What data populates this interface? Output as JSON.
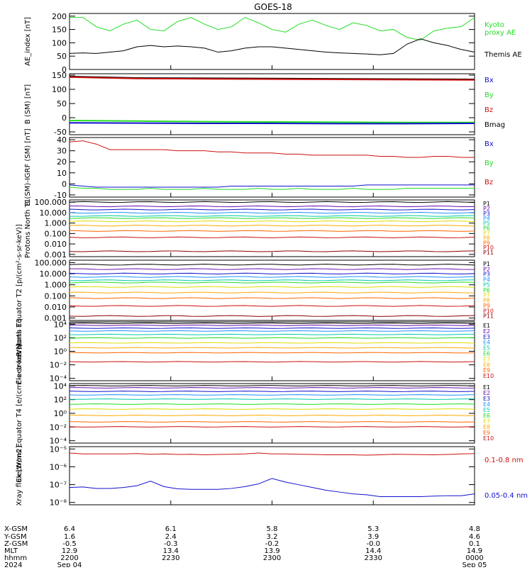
{
  "title": "GOES-18",
  "colors": {
    "black": "#000000",
    "green": "#22dd22",
    "blue": "#1111cc",
    "red": "#cc1111",
    "maroon": "#8b0000",
    "teal": "#228866"
  },
  "ephemeris": {
    "labels": [
      "X-GSM",
      "Y-GSM",
      "Z-GSM",
      "MLT",
      "hhmm",
      "2024"
    ],
    "columns": [
      [
        "6.4",
        "1.6",
        "-0.5",
        "12.9",
        "2200",
        "Sep 04"
      ],
      [
        "6.1",
        "2.4",
        "-0.3",
        "13.4",
        "2230",
        ""
      ],
      [
        "5.8",
        "3.2",
        "-0.2",
        "13.9",
        "2300",
        ""
      ],
      [
        "5.3",
        "3.9",
        "-0.0",
        "14.4",
        "2330",
        ""
      ],
      [
        "4.8",
        "4.6",
        "0.1",
        "14.9",
        "0000",
        "Sep 05"
      ]
    ]
  },
  "chart_data": [
    {
      "type": "line",
      "ylabel": "AE_index [nT]",
      "yticks": [
        "0",
        "50",
        "100",
        "150",
        "200"
      ],
      "ylim": [
        0,
        210
      ],
      "x": [
        0,
        2,
        4,
        6,
        8,
        10,
        12,
        14,
        16,
        18,
        20,
        22,
        24,
        26,
        28,
        30,
        32,
        34,
        36,
        38,
        40,
        42,
        44,
        46,
        48,
        50,
        52,
        54,
        56,
        58,
        60
      ],
      "series": [
        {
          "name": "Kyoto proxy AE",
          "color": "#22dd22",
          "values": [
            195,
            195,
            160,
            145,
            170,
            185,
            150,
            145,
            180,
            195,
            170,
            150,
            160,
            195,
            175,
            150,
            140,
            170,
            185,
            165,
            150,
            175,
            165,
            145,
            150,
            120,
            110,
            145,
            155,
            160,
            195
          ]
        },
        {
          "name": "Themis AE",
          "color": "#000000",
          "values": [
            60,
            62,
            60,
            65,
            70,
            85,
            90,
            85,
            88,
            85,
            80,
            65,
            70,
            80,
            85,
            85,
            80,
            75,
            70,
            65,
            62,
            60,
            58,
            55,
            60,
            95,
            115,
            100,
            90,
            75,
            65
          ]
        }
      ],
      "legend": [
        {
          "text": "Kyoto",
          "color": "#22dd22"
        },
        {
          "text": "proxy AE",
          "color": "#22dd22"
        },
        {
          "text": "Themis AE",
          "color": "#000000"
        }
      ]
    },
    {
      "type": "line",
      "ylabel": "B (SM) [nT]",
      "yticks": [
        "-50",
        "0",
        "50",
        "100",
        "150"
      ],
      "ylim": [
        -60,
        155
      ],
      "x": [
        0,
        10,
        20,
        30,
        40,
        50,
        60
      ],
      "series": [
        {
          "name": "Bmag",
          "color": "#000000",
          "values": [
            145,
            140,
            139,
            138,
            137,
            136,
            135
          ]
        },
        {
          "name": "Bz",
          "color": "#cc1111",
          "values": [
            143,
            138,
            137,
            136,
            135,
            134,
            133
          ]
        },
        {
          "name": "By",
          "color": "#22dd22",
          "values": [
            -10,
            -12,
            -14,
            -15,
            -16,
            -17,
            -17
          ]
        },
        {
          "name": "Bx",
          "color": "#1111cc",
          "values": [
            -18,
            -19,
            -20,
            -20,
            -21,
            -21,
            -20
          ]
        }
      ],
      "legend": [
        {
          "text": "Bx",
          "color": "#1111cc"
        },
        {
          "text": "By",
          "color": "#22dd22"
        },
        {
          "text": "Bz",
          "color": "#cc1111"
        },
        {
          "text": "Bmag",
          "color": "#000000"
        }
      ]
    },
    {
      "type": "line",
      "ylabel": "B (SM)-IGRF (SM) [nT]",
      "yticks": [
        "-10",
        "0",
        "10",
        "20",
        "30",
        "40"
      ],
      "ylim": [
        -12,
        42
      ],
      "x": [
        0,
        2,
        4,
        6,
        8,
        10,
        12,
        14,
        16,
        18,
        20,
        22,
        24,
        26,
        28,
        30,
        32,
        34,
        36,
        38,
        40,
        42,
        44,
        46,
        48,
        50,
        52,
        54,
        56,
        58,
        60
      ],
      "series": [
        {
          "name": "Bz",
          "color": "#cc1111",
          "values": [
            38,
            39,
            36,
            31,
            31,
            31,
            31,
            31,
            30,
            30,
            30,
            29,
            29,
            28,
            28,
            28,
            27,
            27,
            26,
            26,
            26,
            26,
            26,
            25,
            25,
            24,
            24,
            25,
            25,
            24,
            24
          ]
        },
        {
          "name": "Bx",
          "color": "#1111cc",
          "values": [
            -1,
            -2,
            -3,
            -3,
            -3,
            -3,
            -3,
            -3,
            -3,
            -3,
            -3,
            -3,
            -2,
            -2,
            -2,
            -2,
            -2,
            -2,
            -2,
            -2,
            -2,
            -2,
            -1,
            -1,
            -1,
            -1,
            -1,
            -1,
            -1,
            -1,
            -1
          ]
        },
        {
          "name": "By",
          "color": "#22dd22",
          "values": [
            -3,
            -4,
            -4,
            -5,
            -5,
            -5,
            -4,
            -5,
            -5,
            -5,
            -4,
            -5,
            -5,
            -5,
            -4,
            -5,
            -5,
            -4,
            -5,
            -5,
            -5,
            -4,
            -5,
            -5,
            -5,
            -4,
            -4,
            -4,
            -4,
            -4,
            -4
          ]
        }
      ],
      "legend": [
        {
          "text": "Bx",
          "color": "#1111cc"
        },
        {
          "text": "By",
          "color": "#22dd22"
        },
        {
          "text": "Bz",
          "color": "#cc1111"
        }
      ]
    },
    {
      "type": "line",
      "ylabel": "Protons North T1",
      "yticks": [
        "0.001",
        "0.010",
        "0.100",
        "1.000",
        "10.000",
        "100.000"
      ],
      "ylim": [
        -3,
        2.3
      ],
      "log": true,
      "channels": [
        "P1",
        "P2",
        "P3",
        "P4",
        "P5",
        "P6",
        "P7",
        "P8",
        "P9",
        "P10",
        "P11"
      ],
      "channel_colors": [
        "#000000",
        "#6a0dad",
        "#1111cc",
        "#1e90ff",
        "#00ccaa",
        "#22dd22",
        "#dddd00",
        "#ffaa00",
        "#ff6600",
        "#cc1111",
        "#8b0000"
      ],
      "levels": [
        2.1,
        1.7,
        1.4,
        1.1,
        0.8,
        0.6,
        0.3,
        -0.1,
        -0.6,
        -1.2,
        -2.5
      ]
    },
    {
      "type": "line",
      "ylabel": "Protons Equator T2 [p/(cm²-s-sr-keV)]",
      "yticks": [
        "0.001",
        "0.010",
        "0.100",
        "1.000",
        "10.000",
        "100.000"
      ],
      "ylim": [
        -3.2,
        2.2
      ],
      "log": true,
      "channels": [
        "P1",
        "P2",
        "P3",
        "P4",
        "P5",
        "P6",
        "P7",
        "P8",
        "P9",
        "P10",
        "P11"
      ],
      "channel_colors": [
        "#000000",
        "#6a0dad",
        "#1111cc",
        "#1e90ff",
        "#00ccaa",
        "#22dd22",
        "#dddd00",
        "#ffaa00",
        "#ff6600",
        "#cc1111",
        "#8b0000"
      ],
      "levels": [
        1.8,
        1.4,
        1.0,
        0.7,
        0.4,
        0.2,
        -0.2,
        -0.7,
        -1.2,
        -1.9,
        -2.8
      ]
    },
    {
      "type": "line",
      "ylabel": "Electrons North T3",
      "yticks": [
        "10⁻⁴",
        "10⁻²",
        "10⁰",
        "10²",
        "10⁴"
      ],
      "ylim": [
        -4.2,
        4.2
      ],
      "log": true,
      "channels": [
        "E1",
        "E2",
        "E3",
        "E4",
        "E5",
        "E6",
        "E7",
        "E8",
        "E9",
        "E10"
      ],
      "channel_colors": [
        "#000000",
        "#6a0dad",
        "#1111cc",
        "#1e90ff",
        "#00ccaa",
        "#22dd22",
        "#dddd00",
        "#ffaa00",
        "#ff6600",
        "#cc1111"
      ],
      "levels": [
        4.0,
        3.7,
        3.3,
        2.9,
        2.4,
        1.9,
        1.2,
        0.5,
        -0.2,
        -1.5
      ]
    },
    {
      "type": "line",
      "ylabel": "Electrons Equator T4 [e/(cm²-s-sr-keV)]",
      "yticks": [
        "10⁻⁴",
        "10⁻²",
        "10⁰",
        "10²",
        "10⁴"
      ],
      "ylim": [
        -4.2,
        4.2
      ],
      "log": true,
      "channels": [
        "E1",
        "E2",
        "E3",
        "E4",
        "E5",
        "E6",
        "E7",
        "E8",
        "E9",
        "E10"
      ],
      "channel_colors": [
        "#000000",
        "#6a0dad",
        "#1111cc",
        "#1e90ff",
        "#00ccaa",
        "#22dd22",
        "#dddd00",
        "#ffaa00",
        "#ff6600",
        "#cc1111"
      ],
      "levels": [
        3.9,
        3.6,
        3.1,
        2.6,
        2.0,
        1.3,
        0.6,
        -0.3,
        -1.2,
        -1.9
      ]
    },
    {
      "type": "line",
      "ylabel": "Xray flux [W/m2]",
      "yticks": [
        "10⁻⁸",
        "10⁻⁷",
        "10⁻⁶",
        "10⁻⁵"
      ],
      "ylim": [
        -8.1,
        -4.9
      ],
      "log": true,
      "x": [
        0,
        2,
        4,
        6,
        8,
        10,
        12,
        14,
        16,
        18,
        20,
        22,
        24,
        26,
        28,
        30,
        32,
        34,
        36,
        38,
        40,
        42,
        44,
        46,
        48,
        50,
        52,
        54,
        56,
        58,
        60
      ],
      "series": [
        {
          "name": "0.1-0.8 nm",
          "color": "#cc1111",
          "values": [
            -5.25,
            -5.3,
            -5.3,
            -5.3,
            -5.3,
            -5.28,
            -5.32,
            -5.3,
            -5.33,
            -5.32,
            -5.35,
            -5.33,
            -5.32,
            -5.3,
            -5.25,
            -5.3,
            -5.3,
            -5.32,
            -5.33,
            -5.35,
            -5.35,
            -5.35,
            -5.37,
            -5.35,
            -5.32,
            -5.33,
            -5.34,
            -5.35,
            -5.33,
            -5.3,
            -5.28
          ]
        },
        {
          "name": "0.05-0.4 nm",
          "color": "#1111cc",
          "values": [
            -7.15,
            -7.12,
            -7.2,
            -7.2,
            -7.15,
            -7.05,
            -6.8,
            -7.1,
            -7.22,
            -7.25,
            -7.25,
            -7.25,
            -7.2,
            -7.1,
            -6.95,
            -6.65,
            -6.85,
            -7.0,
            -7.15,
            -7.3,
            -7.4,
            -7.5,
            -7.55,
            -7.65,
            -7.65,
            -7.65,
            -7.65,
            -7.62,
            -7.6,
            -7.6,
            -7.5
          ]
        }
      ],
      "legend": [
        {
          "text": "0.1-0.8 nm",
          "color": "#cc1111"
        },
        {
          "text": "0.05-0.4 nm",
          "color": "#1111cc"
        }
      ]
    }
  ]
}
